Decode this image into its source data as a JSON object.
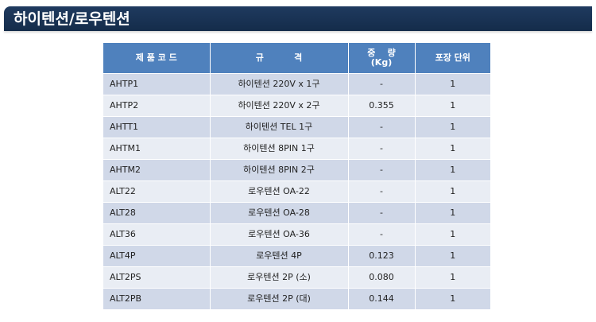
{
  "banner": {
    "title": "하이텐션/로우텐션"
  },
  "table": {
    "headers": {
      "code": "제 품 코 드",
      "spec": "규          격",
      "weight_line1": "중    량",
      "weight_line2": "(Kg)",
      "unit": "포장 단위"
    },
    "rows": [
      {
        "code": "AHTP1",
        "spec": "하이텐션 220V x 1구",
        "weight": "-",
        "unit": "1"
      },
      {
        "code": "AHTP2",
        "spec": "하이텐션 220V x 2구",
        "weight": "0.355",
        "unit": "1"
      },
      {
        "code": "AHTT1",
        "spec": "하이텐션 TEL 1구",
        "weight": "-",
        "unit": "1"
      },
      {
        "code": "AHTM1",
        "spec": "하이텐션 8PIN 1구",
        "weight": "-",
        "unit": "1"
      },
      {
        "code": "AHTM2",
        "spec": "하이텐션 8PIN 2구",
        "weight": "-",
        "unit": "1"
      },
      {
        "code": "ALT22",
        "spec": "로우텐션 OA-22",
        "weight": "-",
        "unit": "1"
      },
      {
        "code": "ALT28",
        "spec": "로우텐션 OA-28",
        "weight": "-",
        "unit": "1"
      },
      {
        "code": "ALT36",
        "spec": "로우텐션 OA-36",
        "weight": "-",
        "unit": "1"
      },
      {
        "code": "ALT4P",
        "spec": "로우텐션 4P",
        "weight": "0.123",
        "unit": "1"
      },
      {
        "code": "ALT2PS",
        "spec": "로우텐션 2P (소)",
        "weight": "0.080",
        "unit": "1"
      },
      {
        "code": "ALT2PB",
        "spec": "로우텐션 2P (대)",
        "weight": "0.144",
        "unit": "1"
      }
    ]
  }
}
